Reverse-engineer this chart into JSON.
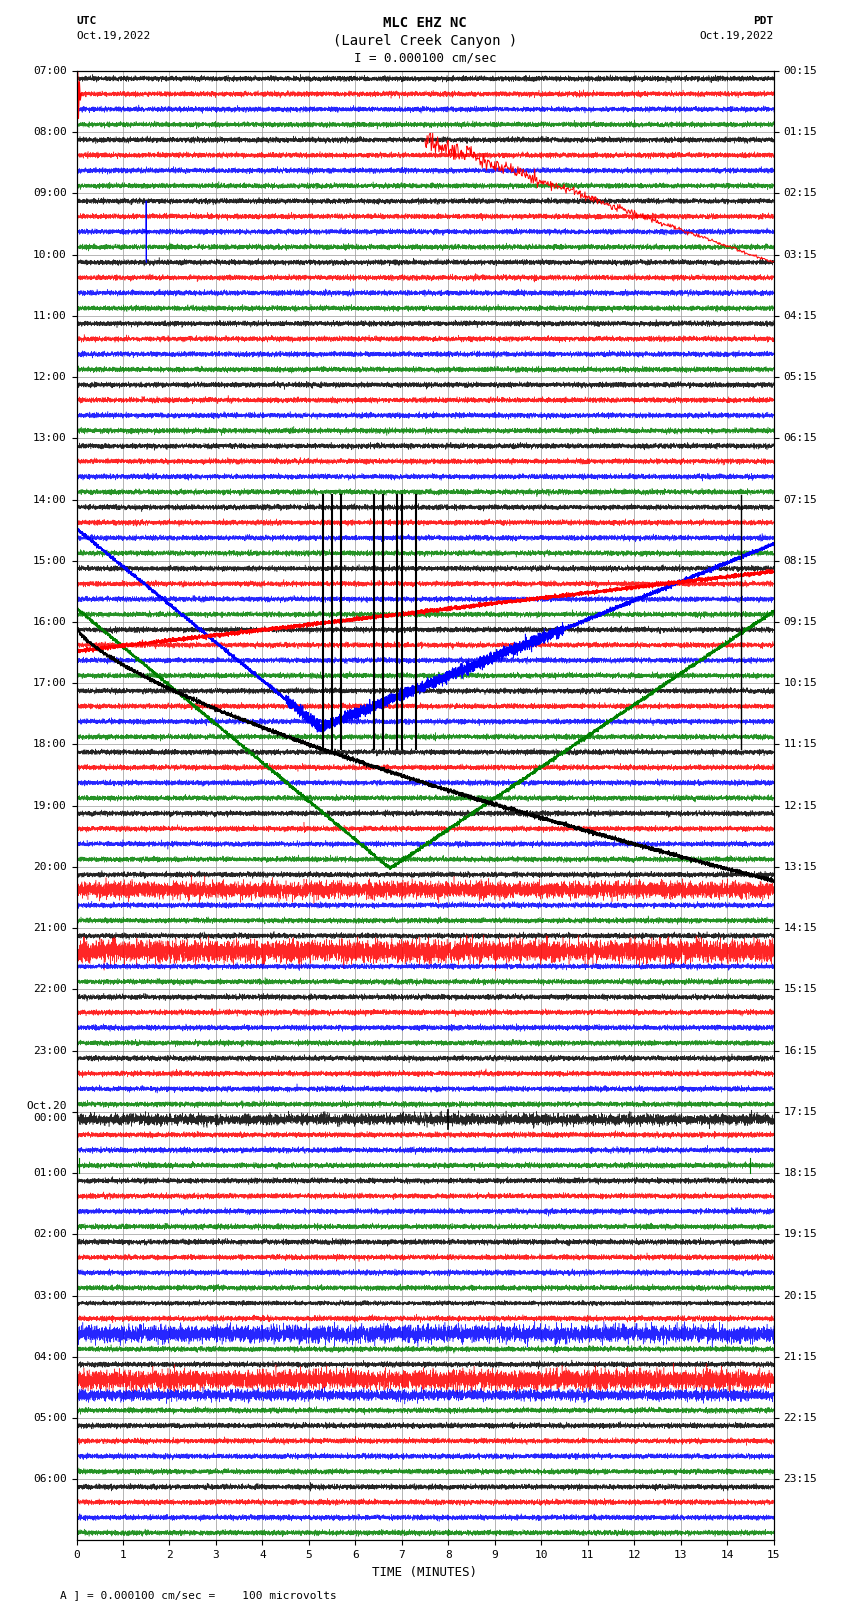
{
  "title_line1": "MLC EHZ NC",
  "title_line2": "(Laurel Creek Canyon )",
  "title_scale": "I = 0.000100 cm/sec",
  "label_utc": "UTC",
  "label_pdt": "PDT",
  "date_left": "Oct.19,2022",
  "date_right": "Oct.19,2022",
  "xlabel": "TIME (MINUTES)",
  "footer_text": "A ] = 0.000100 cm/sec =    100 microvolts",
  "utc_times": [
    "07:00",
    "08:00",
    "09:00",
    "10:00",
    "11:00",
    "12:00",
    "13:00",
    "14:00",
    "15:00",
    "16:00",
    "17:00",
    "18:00",
    "19:00",
    "20:00",
    "21:00",
    "22:00",
    "23:00",
    "Oct.20\n00:00",
    "01:00",
    "02:00",
    "03:00",
    "04:00",
    "05:00",
    "06:00"
  ],
  "pdt_times": [
    "00:15",
    "01:15",
    "02:15",
    "03:15",
    "04:15",
    "05:15",
    "06:15",
    "07:15",
    "08:15",
    "09:15",
    "10:15",
    "11:15",
    "12:15",
    "13:15",
    "14:15",
    "15:15",
    "16:15",
    "17:15",
    "18:15",
    "19:15",
    "20:15",
    "21:15",
    "22:15",
    "23:15"
  ],
  "n_rows": 24,
  "n_minutes": 15,
  "bg_color": "#ffffff",
  "grid_color": "#999999",
  "trace_colors": [
    "#000000",
    "#ff0000",
    "#0000ff",
    "#008000"
  ],
  "title_fontsize": 10,
  "label_fontsize": 9,
  "tick_fontsize": 8
}
